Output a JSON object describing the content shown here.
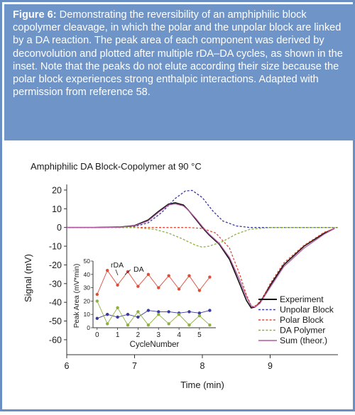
{
  "caption": {
    "lead": "Figure 6:",
    "text": " Demonstrating the reversibility of an amphiphilic block copolymer cleavage, in which the polar and the unpolar block are linked by a DA reaction. The peak area of each component was derived by deconvolution and plotted after multiple rDA–DA cycles, as shown in the inset. Note that the peaks do not elute according their size because the polar block experiences strong enthalpic interactions. Adapted with permission from reference 58."
  },
  "colors": {
    "caption_bg": "#6e94c8",
    "experiment": "#111111",
    "unpolar": "#3a3a9a",
    "polar": "#e04b3a",
    "da_polymer": "#8fb040",
    "sum": "#b05aa0"
  },
  "chart_data": [
    {
      "type": "line",
      "title": "Amphiphilic DA Block-Copolymer at 90 °C",
      "xlabel": "Time (min)",
      "ylabel": "Signal (mV)",
      "xlim": [
        6,
        10
      ],
      "ylim": [
        -68,
        23
      ],
      "xticks": [
        6,
        7,
        8,
        9
      ],
      "yticks": [
        20,
        10,
        0,
        -10,
        -20,
        -30,
        -40,
        -50,
        -60
      ],
      "legend_position": "bottom-right",
      "grid": false,
      "series": [
        {
          "name": "Experiment",
          "style": "solid",
          "color": "#111111",
          "x": [
            6.0,
            6.4,
            6.8,
            7.0,
            7.2,
            7.35,
            7.5,
            7.6,
            7.72,
            7.8,
            7.9,
            8.0,
            8.1,
            8.25,
            8.4,
            8.55,
            8.65,
            8.72,
            8.78,
            8.85,
            9.0,
            9.2,
            9.5,
            9.8,
            9.95
          ],
          "y": [
            0,
            0,
            0.3,
            1,
            4,
            8.5,
            12.5,
            13.2,
            12,
            9,
            4.5,
            0,
            -4,
            -9,
            -17,
            -30,
            -39,
            -43,
            -42.5,
            -40,
            -31,
            -20,
            -10,
            -3,
            -0.5
          ]
        },
        {
          "name": "Unpolar Block",
          "style": "dotted",
          "color": "#3a3a9a",
          "x": [
            6.0,
            6.8,
            7.0,
            7.2,
            7.4,
            7.6,
            7.75,
            7.85,
            8.0,
            8.15,
            8.3,
            8.5,
            8.7,
            9.0,
            10.0
          ],
          "y": [
            0,
            0,
            0.5,
            2.5,
            8,
            15.5,
            19.5,
            19.8,
            16,
            9,
            3.5,
            0.8,
            0,
            0,
            0
          ]
        },
        {
          "name": "Polar Block",
          "style": "dotted",
          "color": "#e04b3a",
          "x": [
            6.0,
            7.8,
            8.0,
            8.2,
            8.4,
            8.55,
            8.65,
            8.73,
            8.8,
            8.9,
            9.0,
            9.2,
            9.5,
            9.8,
            9.95
          ],
          "y": [
            0,
            0,
            -0.5,
            -3,
            -11,
            -25,
            -36,
            -42.5,
            -41.5,
            -37,
            -30,
            -19,
            -9.5,
            -2.5,
            -0.5
          ]
        },
        {
          "name": "DA Polymer",
          "style": "dotted",
          "color": "#8fb040",
          "x": [
            6.0,
            7.0,
            7.3,
            7.5,
            7.7,
            7.9,
            8.0,
            8.1,
            8.3,
            8.5,
            8.7,
            9.0,
            10.0
          ],
          "y": [
            0,
            0,
            -1,
            -3,
            -6,
            -9.5,
            -10.5,
            -10,
            -7.5,
            -3.5,
            -1,
            0,
            0
          ]
        },
        {
          "name": "Sum (theor.)",
          "style": "solid",
          "color": "#b05aa0",
          "x": [
            6.0,
            6.4,
            6.8,
            7.0,
            7.2,
            7.35,
            7.5,
            7.6,
            7.72,
            7.8,
            7.9,
            8.0,
            8.1,
            8.25,
            8.4,
            8.55,
            8.65,
            8.72,
            8.78,
            8.85,
            9.0,
            9.2,
            9.5,
            9.8,
            9.95
          ],
          "y": [
            0,
            0,
            0.2,
            0.8,
            3.5,
            8,
            12,
            12.6,
            11.5,
            9,
            5,
            0.5,
            -3.5,
            -8.5,
            -16,
            -28,
            -37,
            -42,
            -42.5,
            -40.5,
            -32,
            -21,
            -11,
            -3.5,
            -0.5
          ]
        }
      ]
    },
    {
      "type": "line",
      "title": "",
      "xlabel": "CycleNumber",
      "ylabel": "Peak Area (mV*min)",
      "xlim": [
        -0.2,
        5.8
      ],
      "ylim": [
        0,
        50
      ],
      "xticks": [
        0,
        1,
        2,
        3,
        4,
        5
      ],
      "yticks": [
        0,
        10,
        20,
        30,
        40,
        50
      ],
      "annotations": [
        "rDA",
        "DA"
      ],
      "series": [
        {
          "name": "Polar Block",
          "color": "#e04b3a",
          "x": [
            0,
            0.5,
            1,
            1.5,
            2,
            2.5,
            3,
            3.5,
            4,
            4.5,
            5,
            5.5
          ],
          "y": [
            25,
            43,
            32,
            42,
            31,
            40,
            30,
            39,
            29,
            39,
            28,
            38
          ]
        },
        {
          "name": "Unpolar Block",
          "color": "#3a3a9a",
          "x": [
            0,
            0.5,
            1,
            1.5,
            2,
            2.5,
            3,
            3.5,
            4,
            4.5,
            5,
            5.5
          ],
          "y": [
            7,
            10,
            8,
            10,
            8,
            13,
            12,
            12,
            11,
            12,
            11,
            13
          ]
        },
        {
          "name": "DA Polymer",
          "color": "#8fb040",
          "x": [
            0,
            0.5,
            1,
            1.5,
            2,
            2.5,
            3,
            3.5,
            4,
            4.5,
            5,
            5.5
          ],
          "y": [
            20,
            3,
            15,
            2,
            12,
            2,
            10,
            3,
            10,
            2,
            9,
            2
          ]
        }
      ]
    }
  ]
}
